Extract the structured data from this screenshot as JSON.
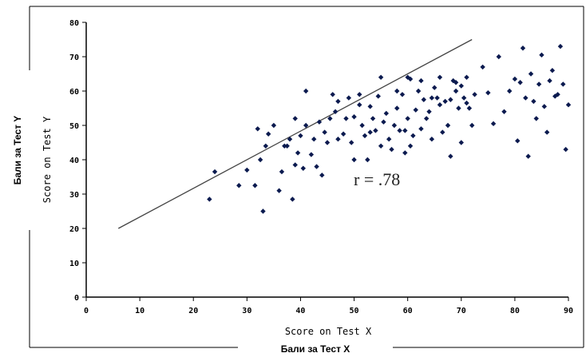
{
  "chart_data": {
    "type": "scatter",
    "xlabel": "Score on Test X",
    "ylabel": "Score on Test Y",
    "outer_xlabel": "Бали за Тест X",
    "outer_ylabel": "Бали за Тест Y",
    "annotation": "r = .78",
    "xlim": [
      0,
      90
    ],
    "ylim": [
      0,
      80
    ],
    "x_ticks": [
      "0",
      "10",
      "20",
      "30",
      "40",
      "50",
      "60",
      "70",
      "80",
      "90"
    ],
    "y_ticks": [
      "0",
      "10",
      "20",
      "30",
      "40",
      "50",
      "60",
      "70",
      "80"
    ],
    "grid": false,
    "marker_color": "#0b1a4f",
    "regression_line": {
      "x": [
        6,
        72
      ],
      "y": [
        20,
        75
      ]
    },
    "points": [
      {
        "x": 23,
        "y": 28.5
      },
      {
        "x": 24,
        "y": 36.5
      },
      {
        "x": 28.5,
        "y": 32.5
      },
      {
        "x": 30,
        "y": 37
      },
      {
        "x": 32,
        "y": 49
      },
      {
        "x": 31.5,
        "y": 32.5
      },
      {
        "x": 32.5,
        "y": 40
      },
      {
        "x": 33,
        "y": 25
      },
      {
        "x": 33.5,
        "y": 44
      },
      {
        "x": 34,
        "y": 47.5
      },
      {
        "x": 35,
        "y": 50
      },
      {
        "x": 36,
        "y": 31
      },
      {
        "x": 36.5,
        "y": 36.5
      },
      {
        "x": 37,
        "y": 44
      },
      {
        "x": 37.5,
        "y": 44
      },
      {
        "x": 38,
        "y": 46
      },
      {
        "x": 38.5,
        "y": 28.5
      },
      {
        "x": 39,
        "y": 38.5
      },
      {
        "x": 39,
        "y": 52
      },
      {
        "x": 39.5,
        "y": 42
      },
      {
        "x": 40,
        "y": 47
      },
      {
        "x": 40.5,
        "y": 37.5
      },
      {
        "x": 41,
        "y": 50
      },
      {
        "x": 41,
        "y": 60
      },
      {
        "x": 42,
        "y": 41.5
      },
      {
        "x": 42.5,
        "y": 46
      },
      {
        "x": 43,
        "y": 38
      },
      {
        "x": 43.5,
        "y": 51
      },
      {
        "x": 44,
        "y": 35.5
      },
      {
        "x": 44.5,
        "y": 48
      },
      {
        "x": 45,
        "y": 45
      },
      {
        "x": 45.5,
        "y": 52
      },
      {
        "x": 46,
        "y": 59
      },
      {
        "x": 46.5,
        "y": 54
      },
      {
        "x": 47,
        "y": 46
      },
      {
        "x": 47,
        "y": 57
      },
      {
        "x": 48,
        "y": 47.5
      },
      {
        "x": 48.5,
        "y": 52
      },
      {
        "x": 49,
        "y": 58
      },
      {
        "x": 49.5,
        "y": 45
      },
      {
        "x": 50,
        "y": 40
      },
      {
        "x": 50,
        "y": 52.5
      },
      {
        "x": 51,
        "y": 56
      },
      {
        "x": 51,
        "y": 59
      },
      {
        "x": 51.5,
        "y": 50
      },
      {
        "x": 52,
        "y": 47
      },
      {
        "x": 52.5,
        "y": 40
      },
      {
        "x": 53,
        "y": 48
      },
      {
        "x": 53,
        "y": 55.5
      },
      {
        "x": 53.5,
        "y": 52
      },
      {
        "x": 54,
        "y": 48.5
      },
      {
        "x": 54.5,
        "y": 58.5
      },
      {
        "x": 55,
        "y": 44
      },
      {
        "x": 55.5,
        "y": 51
      },
      {
        "x": 56,
        "y": 53.5
      },
      {
        "x": 56.5,
        "y": 46
      },
      {
        "x": 57,
        "y": 43
      },
      {
        "x": 57.5,
        "y": 50
      },
      {
        "x": 58,
        "y": 55
      },
      {
        "x": 58.5,
        "y": 48.5
      },
      {
        "x": 59,
        "y": 59
      },
      {
        "x": 59.5,
        "y": 42
      },
      {
        "x": 60,
        "y": 52
      },
      {
        "x": 60.5,
        "y": 44
      },
      {
        "x": 61,
        "y": 47
      },
      {
        "x": 61.5,
        "y": 54.5
      },
      {
        "x": 62,
        "y": 60
      },
      {
        "x": 62.5,
        "y": 49
      },
      {
        "x": 63,
        "y": 57.5
      },
      {
        "x": 63.5,
        "y": 52
      },
      {
        "x": 64,
        "y": 54
      },
      {
        "x": 64.5,
        "y": 46
      },
      {
        "x": 65,
        "y": 61
      },
      {
        "x": 65.5,
        "y": 58
      },
      {
        "x": 66,
        "y": 56
      },
      {
        "x": 66.5,
        "y": 48
      },
      {
        "x": 67,
        "y": 57
      },
      {
        "x": 67.5,
        "y": 50
      },
      {
        "x": 68,
        "y": 41
      },
      {
        "x": 68.5,
        "y": 63
      },
      {
        "x": 69,
        "y": 60
      },
      {
        "x": 69.5,
        "y": 55
      },
      {
        "x": 70,
        "y": 61.5
      },
      {
        "x": 70.5,
        "y": 58
      },
      {
        "x": 71,
        "y": 64
      },
      {
        "x": 71.5,
        "y": 55
      },
      {
        "x": 72,
        "y": 50
      },
      {
        "x": 72.5,
        "y": 59
      },
      {
        "x": 60.5,
        "y": 63.5
      },
      {
        "x": 62.5,
        "y": 63
      },
      {
        "x": 58,
        "y": 60
      },
      {
        "x": 60,
        "y": 64
      },
      {
        "x": 64.5,
        "y": 58
      },
      {
        "x": 66,
        "y": 64
      },
      {
        "x": 59.5,
        "y": 48.5
      },
      {
        "x": 55,
        "y": 64
      },
      {
        "x": 69,
        "y": 62.5
      },
      {
        "x": 71,
        "y": 56.5
      },
      {
        "x": 70,
        "y": 45
      },
      {
        "x": 68,
        "y": 57.5
      },
      {
        "x": 74,
        "y": 67
      },
      {
        "x": 77,
        "y": 70
      },
      {
        "x": 79,
        "y": 60
      },
      {
        "x": 80,
        "y": 63.5
      },
      {
        "x": 81,
        "y": 62.5
      },
      {
        "x": 82,
        "y": 58
      },
      {
        "x": 83,
        "y": 65
      },
      {
        "x": 83.5,
        "y": 57
      },
      {
        "x": 84,
        "y": 52
      },
      {
        "x": 84.5,
        "y": 62
      },
      {
        "x": 85,
        "y": 70.5
      },
      {
        "x": 85.5,
        "y": 55.5
      },
      {
        "x": 86,
        "y": 48
      },
      {
        "x": 86.5,
        "y": 63
      },
      {
        "x": 87,
        "y": 66
      },
      {
        "x": 87.5,
        "y": 58.5
      },
      {
        "x": 88,
        "y": 59
      },
      {
        "x": 88.5,
        "y": 73
      },
      {
        "x": 89,
        "y": 62
      },
      {
        "x": 89.5,
        "y": 43
      },
      {
        "x": 90,
        "y": 56
      },
      {
        "x": 78,
        "y": 54
      },
      {
        "x": 80.5,
        "y": 45.5
      },
      {
        "x": 82.5,
        "y": 41
      },
      {
        "x": 76,
        "y": 50.5
      },
      {
        "x": 75,
        "y": 59.5
      },
      {
        "x": 81.5,
        "y": 72.5
      }
    ]
  }
}
